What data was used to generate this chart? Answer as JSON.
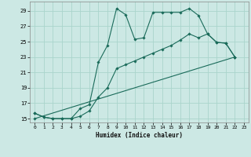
{
  "title": "",
  "xlabel": "Humidex (Indice chaleur)",
  "bg_color": "#cce8e4",
  "grid_color": "#aad4cc",
  "line_color": "#1a6b5a",
  "xlim": [
    -0.5,
    23.5
  ],
  "ylim": [
    14.5,
    30.2
  ],
  "xticks": [
    0,
    1,
    2,
    3,
    4,
    5,
    6,
    7,
    8,
    9,
    10,
    11,
    12,
    13,
    14,
    15,
    16,
    17,
    18,
    19,
    20,
    21,
    22,
    23
  ],
  "yticks": [
    15,
    17,
    19,
    21,
    23,
    25,
    27,
    29
  ],
  "line1_x": [
    0,
    1,
    2,
    3,
    4,
    5,
    6,
    7,
    8,
    9,
    10,
    11,
    12,
    13,
    14,
    15,
    16,
    17,
    18,
    19,
    20,
    21,
    22
  ],
  "line1_y": [
    15.7,
    15.2,
    15.0,
    15.0,
    15.0,
    16.3,
    16.8,
    22.3,
    24.5,
    29.3,
    28.5,
    25.3,
    25.5,
    28.8,
    28.8,
    28.8,
    28.8,
    29.3,
    28.4,
    26.0,
    24.9,
    24.8,
    23.0
  ],
  "line2_x": [
    0,
    1,
    2,
    3,
    4,
    5,
    6,
    7,
    8,
    9,
    10,
    11,
    12,
    13,
    14,
    15,
    16,
    17,
    18,
    19,
    20,
    21,
    22
  ],
  "line2_y": [
    15.7,
    15.2,
    15.0,
    15.0,
    15.0,
    15.3,
    16.0,
    17.8,
    19.0,
    21.5,
    22.0,
    22.5,
    23.0,
    23.5,
    24.0,
    24.5,
    25.2,
    26.0,
    25.5,
    26.0,
    24.9,
    24.8,
    23.0
  ],
  "line3_x": [
    0,
    22
  ],
  "line3_y": [
    15.0,
    23.0
  ],
  "line4_x": [
    0,
    22
  ],
  "line4_y": [
    15.0,
    23.0
  ]
}
